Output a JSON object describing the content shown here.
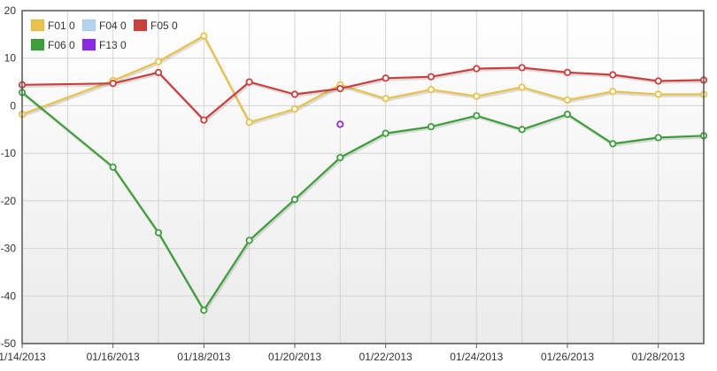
{
  "chart_data": {
    "type": "line",
    "title": "",
    "xlabel": "",
    "ylabel": "",
    "ylim": [
      -50,
      20
    ],
    "yticks": [
      20,
      10,
      0,
      -10,
      -20,
      -30,
      -40,
      -50
    ],
    "xlim": [
      "2013-01-14",
      "2013-01-29"
    ],
    "xticks": [
      "1/14/2013",
      "01/16/2013",
      "01/18/2013",
      "01/20/2013",
      "01/22/2013",
      "01/24/2013",
      "01/26/2013",
      "01/28/2013"
    ],
    "grid": true,
    "legend_position": "top-left",
    "x": [
      "2013-01-14",
      "2013-01-15",
      "2013-01-16",
      "2013-01-17",
      "2013-01-18",
      "2013-01-19",
      "2013-01-20",
      "2013-01-21",
      "2013-01-22",
      "2013-01-23",
      "2013-01-24",
      "2013-01-25",
      "2013-01-26",
      "2013-01-27",
      "2013-01-28",
      "2013-01-29"
    ],
    "series": [
      {
        "name": "F01 0",
        "color": "#e8c24a",
        "values": [
          -1.8,
          null,
          5.3,
          9.3,
          14.7,
          -3.5,
          -0.7,
          4.4,
          1.5,
          3.4,
          2.0,
          3.9,
          1.2,
          3.0,
          2.4,
          2.4
        ]
      },
      {
        "name": "F04 0",
        "color": "#b3d4f0",
        "values": [
          null,
          null,
          null,
          null,
          null,
          null,
          null,
          null,
          null,
          null,
          null,
          null,
          null,
          null,
          null,
          null
        ]
      },
      {
        "name": "F05 0",
        "color": "#c9403e",
        "values": [
          4.4,
          null,
          4.7,
          7.0,
          -3.0,
          5.0,
          2.4,
          3.6,
          5.8,
          6.1,
          7.8,
          8.0,
          7.0,
          6.5,
          5.2,
          5.4
        ]
      },
      {
        "name": "F06 0",
        "color": "#3e9e3b",
        "values": [
          2.8,
          null,
          -12.9,
          -26.7,
          -43.0,
          -28.3,
          -19.7,
          -10.9,
          -5.8,
          -4.4,
          -2.1,
          -5.0,
          -1.8,
          -8.0,
          -6.7,
          -6.3
        ]
      },
      {
        "name": "F13 0",
        "color": "#8a2be2",
        "values": [
          null,
          null,
          null,
          null,
          null,
          null,
          null,
          -3.9,
          null,
          null,
          null,
          null,
          null,
          null,
          null,
          null
        ]
      }
    ]
  }
}
